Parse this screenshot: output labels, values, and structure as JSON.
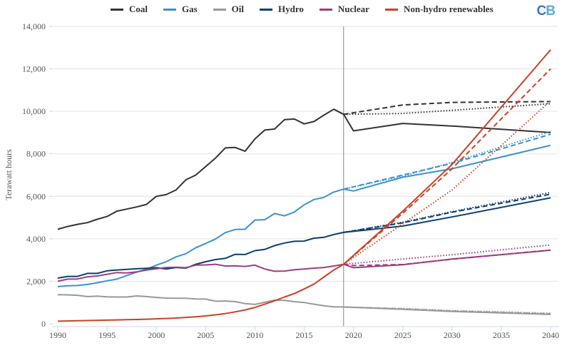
{
  "chart_data": {
    "type": "line",
    "title": "",
    "xlabel": "",
    "ylabel": "Terawatt hours",
    "xlim": [
      1990,
      2040
    ],
    "ylim": [
      0,
      14000
    ],
    "x_ticks": [
      "1990",
      "1995",
      "2000",
      "2005",
      "2010",
      "2015",
      "2020",
      "2025",
      "2030",
      "2035",
      "2040"
    ],
    "y_ticks": [
      "0",
      "2,000",
      "4,000",
      "6,000",
      "8,000",
      "10,000",
      "12,000",
      "14,000"
    ],
    "grid": "horizontal",
    "legend_position": "top",
    "projection_marker_year": 2019,
    "line_styles": {
      "solid": "historical / scenario A",
      "dashed": "scenario B",
      "dotted": "scenario C"
    },
    "series": [
      {
        "name": "Coal",
        "color": "#333333",
        "historical": {
          "x": [
            1990,
            1991,
            1992,
            1993,
            1994,
            1995,
            1996,
            1997,
            1998,
            1999,
            2000,
            2001,
            2002,
            2003,
            2004,
            2005,
            2006,
            2007,
            2008,
            2009,
            2010,
            2011,
            2012,
            2013,
            2014,
            2015,
            2016,
            2017,
            2018,
            2019
          ],
          "y": [
            4450,
            4580,
            4680,
            4760,
            4920,
            5050,
            5300,
            5400,
            5500,
            5620,
            6000,
            6080,
            6300,
            6780,
            7000,
            7400,
            7800,
            8280,
            8300,
            8120,
            8700,
            9120,
            9170,
            9610,
            9640,
            9410,
            9520,
            9820,
            10100,
            9860
          ]
        },
        "projections": [
          {
            "style": "solid",
            "x": [
              2019,
              2020,
              2025,
              2030,
              2040
            ],
            "y": [
              9860,
              9080,
              9430,
              9310,
              9000
            ]
          },
          {
            "style": "dashed",
            "x": [
              2019,
              2025,
              2030,
              2040
            ],
            "y": [
              9860,
              10300,
              10420,
              10460
            ]
          },
          {
            "style": "dotted",
            "x": [
              2019,
              2025,
              2030,
              2040
            ],
            "y": [
              9860,
              9900,
              10050,
              10360
            ]
          }
        ]
      },
      {
        "name": "Gas",
        "color": "#3a92d0",
        "historical": {
          "x": [
            1990,
            1991,
            1992,
            1993,
            1994,
            1995,
            1996,
            1997,
            1998,
            1999,
            2000,
            2001,
            2002,
            2003,
            2004,
            2005,
            2006,
            2007,
            2008,
            2009,
            2010,
            2011,
            2012,
            2013,
            2014,
            2015,
            2016,
            2017,
            2018,
            2019
          ],
          "y": [
            1750,
            1790,
            1800,
            1850,
            1930,
            2020,
            2100,
            2270,
            2430,
            2570,
            2760,
            2920,
            3150,
            3300,
            3580,
            3780,
            3990,
            4290,
            4440,
            4450,
            4880,
            4900,
            5190,
            5080,
            5260,
            5600,
            5850,
            5950,
            6200,
            6340
          ]
        },
        "projections": [
          {
            "style": "solid",
            "x": [
              2019,
              2020,
              2025,
              2030,
              2040
            ],
            "y": [
              6340,
              6250,
              6900,
              7300,
              8400
            ]
          },
          {
            "style": "dashed",
            "x": [
              2019,
              2025,
              2030,
              2040
            ],
            "y": [
              6340,
              7000,
              7550,
              8920
            ]
          },
          {
            "style": "dotted",
            "x": [
              2019,
              2025,
              2030,
              2040
            ],
            "y": [
              6340,
              6950,
              7600,
              9050
            ]
          }
        ]
      },
      {
        "name": "Oil",
        "color": "#999999",
        "historical": {
          "x": [
            1990,
            1991,
            1992,
            1993,
            1994,
            1995,
            1996,
            1997,
            1998,
            1999,
            2000,
            2001,
            2002,
            2003,
            2004,
            2005,
            2006,
            2007,
            2008,
            2009,
            2010,
            2011,
            2012,
            2013,
            2014,
            2015,
            2016,
            2017,
            2018,
            2019
          ],
          "y": [
            1370,
            1360,
            1340,
            1280,
            1300,
            1270,
            1260,
            1260,
            1310,
            1280,
            1240,
            1210,
            1200,
            1200,
            1170,
            1160,
            1060,
            1070,
            1040,
            950,
            910,
            1010,
            1110,
            1100,
            1040,
            1000,
            920,
            850,
            800,
            790
          ]
        },
        "projections": [
          {
            "style": "solid",
            "x": [
              2019,
              2025,
              2030,
              2040
            ],
            "y": [
              790,
              680,
              580,
              440
            ]
          },
          {
            "style": "dashed",
            "x": [
              2019,
              2025,
              2030,
              2040
            ],
            "y": [
              790,
              700,
              600,
              470
            ]
          },
          {
            "style": "dotted",
            "x": [
              2019,
              2025,
              2030,
              2040
            ],
            "y": [
              790,
              720,
              620,
              500
            ]
          }
        ]
      },
      {
        "name": "Hydro",
        "color": "#0b3f70",
        "historical": {
          "x": [
            1990,
            1991,
            1992,
            1993,
            1994,
            1995,
            1996,
            1997,
            1998,
            1999,
            2000,
            2001,
            2002,
            2003,
            2004,
            2005,
            2006,
            2007,
            2008,
            2009,
            2010,
            2011,
            2012,
            2013,
            2014,
            2015,
            2016,
            2017,
            2018,
            2019
          ],
          "y": [
            2150,
            2230,
            2230,
            2370,
            2370,
            2490,
            2530,
            2560,
            2590,
            2610,
            2640,
            2580,
            2650,
            2620,
            2800,
            2920,
            3020,
            3080,
            3270,
            3260,
            3440,
            3500,
            3680,
            3800,
            3880,
            3890,
            4030,
            4070,
            4200,
            4300
          ]
        },
        "projections": [
          {
            "style": "solid",
            "x": [
              2019,
              2025,
              2030,
              2040
            ],
            "y": [
              4300,
              4600,
              5030,
              5930
            ]
          },
          {
            "style": "dashed",
            "x": [
              2019,
              2025,
              2030,
              2040
            ],
            "y": [
              4300,
              4750,
              5250,
              6100
            ]
          },
          {
            "style": "dotted",
            "x": [
              2019,
              2025,
              2030,
              2040
            ],
            "y": [
              4300,
              4780,
              5280,
              6180
            ]
          }
        ]
      },
      {
        "name": "Nuclear",
        "color": "#9b3f7e",
        "historical": {
          "x": [
            1990,
            1991,
            1992,
            1993,
            1994,
            1995,
            1996,
            1997,
            1998,
            1999,
            2000,
            2001,
            2002,
            2003,
            2004,
            2005,
            2006,
            2007,
            2008,
            2009,
            2010,
            2011,
            2012,
            2013,
            2014,
            2015,
            2016,
            2017,
            2018,
            2019
          ],
          "y": [
            2000,
            2100,
            2110,
            2210,
            2250,
            2330,
            2410,
            2390,
            2440,
            2530,
            2590,
            2650,
            2660,
            2640,
            2760,
            2770,
            2800,
            2720,
            2730,
            2700,
            2760,
            2580,
            2470,
            2480,
            2540,
            2580,
            2620,
            2650,
            2720,
            2800
          ]
        },
        "projections": [
          {
            "style": "solid",
            "x": [
              2019,
              2020,
              2025,
              2030,
              2040
            ],
            "y": [
              2800,
              2640,
              2780,
              3050,
              3460
            ]
          },
          {
            "style": "dashed",
            "x": [
              2019,
              2020,
              2025,
              2030,
              2040
            ],
            "y": [
              2800,
              2740,
              2790,
              3040,
              3470
            ]
          },
          {
            "style": "dotted",
            "x": [
              2019,
              2025,
              2030,
              2040
            ],
            "y": [
              2800,
              3050,
              3250,
              3710
            ]
          }
        ]
      },
      {
        "name": "Non-hydro renewables",
        "color": "#cc4125",
        "historical": {
          "x": [
            1990,
            1991,
            1992,
            1993,
            1994,
            1995,
            1996,
            1997,
            1998,
            1999,
            2000,
            2001,
            2002,
            2003,
            2004,
            2005,
            2006,
            2007,
            2008,
            2009,
            2010,
            2011,
            2012,
            2013,
            2014,
            2015,
            2016,
            2017,
            2018,
            2019
          ],
          "y": [
            120,
            130,
            140,
            150,
            160,
            170,
            180,
            190,
            200,
            215,
            230,
            250,
            270,
            300,
            330,
            370,
            420,
            480,
            560,
            650,
            770,
            920,
            1080,
            1260,
            1420,
            1640,
            1870,
            2200,
            2530,
            2800
          ]
        },
        "projections": [
          {
            "style": "solid",
            "x": [
              2019,
              2025,
              2030,
              2040
            ],
            "y": [
              2800,
              5300,
              7500,
              12900
            ]
          },
          {
            "style": "dashed",
            "x": [
              2019,
              2025,
              2030,
              2040
            ],
            "y": [
              2800,
              5200,
              7300,
              12000
            ]
          },
          {
            "style": "dotted",
            "x": [
              2019,
              2025,
              2030,
              2040
            ],
            "y": [
              2800,
              4700,
              6300,
              10500
            ]
          }
        ]
      }
    ]
  },
  "logo": {
    "part1": "C",
    "part2": "B"
  }
}
